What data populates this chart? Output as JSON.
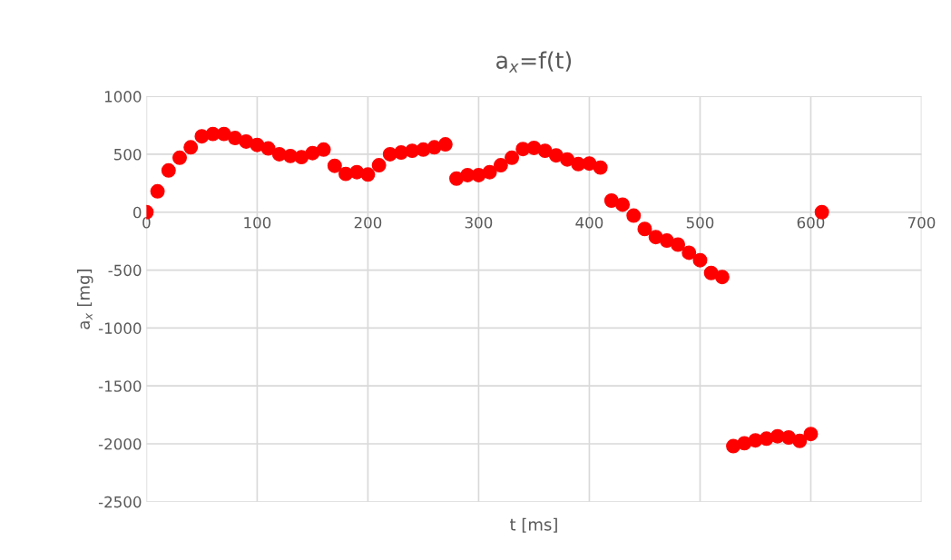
{
  "chart_data": {
    "type": "scatter",
    "title": "a$_{x}$=f(t)",
    "xlabel": "t [ms]",
    "ylabel": "a$_{x}$ [mg]",
    "x": [
      0,
      10,
      20,
      30,
      40,
      50,
      60,
      70,
      80,
      90,
      100,
      110,
      120,
      130,
      140,
      150,
      160,
      170,
      180,
      190,
      200,
      210,
      220,
      230,
      240,
      250,
      260,
      270,
      280,
      290,
      300,
      310,
      320,
      330,
      340,
      350,
      360,
      370,
      380,
      390,
      400,
      410,
      420,
      430,
      440,
      450,
      460,
      470,
      480,
      490,
      500,
      510,
      520,
      530,
      540,
      550,
      560,
      570,
      580,
      590,
      600,
      610
    ],
    "series": [
      {
        "color": "#ff0000",
        "values": [
          0,
          180,
          360,
          470,
          560,
          655,
          675,
          675,
          640,
          610,
          580,
          550,
          500,
          485,
          475,
          510,
          540,
          400,
          330,
          345,
          325,
          405,
          500,
          515,
          530,
          540,
          560,
          585,
          290,
          320,
          320,
          345,
          405,
          470,
          545,
          555,
          530,
          490,
          455,
          415,
          420,
          385,
          100,
          65,
          -30,
          -145,
          -215,
          -245,
          -280,
          -350,
          -415,
          -525,
          -560,
          -2020,
          -1995,
          -1970,
          -1955,
          -1935,
          -1945,
          -1975,
          -1915,
          0
        ]
      }
    ],
    "marker": "circle",
    "xlim": [
      0,
      700
    ],
    "xticks": [
      0,
      100,
      200,
      300,
      400,
      500,
      600,
      700
    ],
    "ylim": [
      -2500,
      1000
    ],
    "yticks": [
      -2500,
      -2000,
      -1500,
      -1000,
      -500,
      0,
      500,
      1000
    ],
    "grid": true,
    "legend": false
  }
}
